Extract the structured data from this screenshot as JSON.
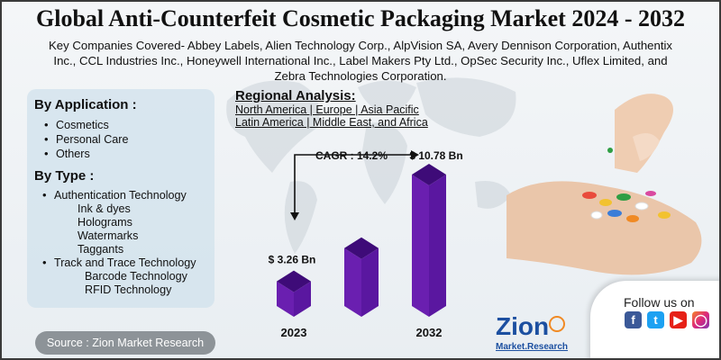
{
  "title": "Global Anti-Counterfeit Cosmetic Packaging Market 2024 - 2032",
  "subtitle": "Key Companies Covered- Abbey Labels, Alien Technology Corp., AlpVision SA, Avery Dennison Corporation, Authentix Inc., CCL Industries Inc., Honeywell International Inc., Label Makers Pty Ltd., OpSec Security Inc., Uflex Limited, and Zebra Technologies Corporation.",
  "by_application": {
    "heading": "By Application :",
    "items": [
      "Cosmetics",
      "Personal Care",
      "Others"
    ]
  },
  "by_type": {
    "heading": "By Type :",
    "items": [
      {
        "label": "Authentication Technology",
        "sub": [
          "Ink & dyes",
          "Holograms",
          "Watermarks",
          "Taggants"
        ]
      },
      {
        "label": "Track and Trace Technology",
        "sub": [
          "Barcode Technology",
          "RFID Technology"
        ]
      }
    ]
  },
  "regional": {
    "heading": "Regional Analysis:",
    "line1": "North America | Europe | Asia Pacific",
    "line2": "Latin America | Middle East, and Africa"
  },
  "chart_data": {
    "type": "bar",
    "categories": [
      "2023",
      "",
      "2032"
    ],
    "values": [
      3.26,
      5.6,
      10.78
    ],
    "value_labels": [
      "$ 3.26 Bn",
      "",
      "$ 10.78 Bn"
    ],
    "cagr_label": "CAGR : 14.2%",
    "bar_color": "#6a1fb0",
    "bar_top_color": "#3e0b78"
  },
  "follow": {
    "label": "Follow us on",
    "icons": [
      "facebook-icon",
      "twitter-icon",
      "youtube-icon",
      "instagram-icon"
    ]
  },
  "logo": {
    "word": "Zion",
    "tagline": "Market.Research"
  },
  "source": "Source : Zion Market Research"
}
